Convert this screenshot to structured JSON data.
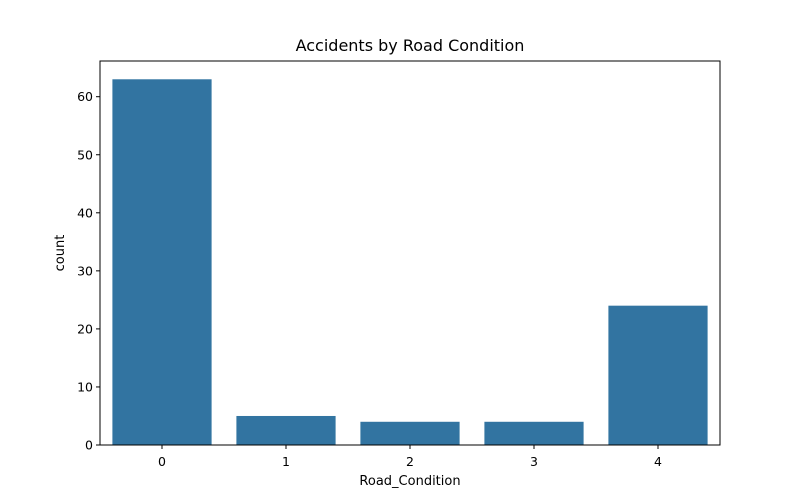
{
  "chart_data": {
    "type": "bar",
    "title": "Accidents by Road Condition",
    "xlabel": "Road_Condition",
    "ylabel": "count",
    "categories": [
      "0",
      "1",
      "2",
      "3",
      "4"
    ],
    "values": [
      63,
      5,
      4,
      4,
      24
    ],
    "ylim": [
      0,
      66.15
    ],
    "yticks": [
      0,
      10,
      20,
      30,
      40,
      50,
      60
    ],
    "grid": false,
    "legend": "none",
    "bar_color": "#3274a1"
  }
}
